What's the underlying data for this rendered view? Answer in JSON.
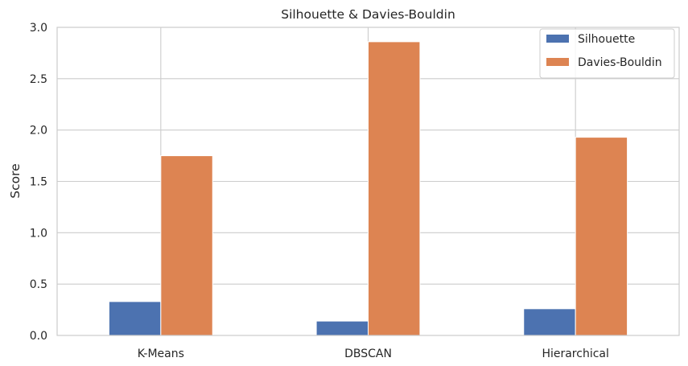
{
  "chart_data": {
    "type": "bar",
    "title": "Silhouette & Davies-Bouldin",
    "xlabel": "",
    "ylabel": "Score",
    "categories": [
      "K-Means",
      "DBSCAN",
      "Hierarchical"
    ],
    "series": [
      {
        "name": "Silhouette",
        "color": "#4c72b0",
        "values": [
          0.33,
          0.14,
          0.26
        ]
      },
      {
        "name": "Davies-Bouldin",
        "color": "#dd8452",
        "values": [
          1.75,
          2.86,
          1.93
        ]
      }
    ],
    "ylim": [
      0,
      3.0
    ],
    "yticks": [
      "0.0",
      "0.5",
      "1.0",
      "1.5",
      "2.0",
      "2.5",
      "3.0"
    ],
    "grid": true,
    "legend_position": "top-right"
  }
}
